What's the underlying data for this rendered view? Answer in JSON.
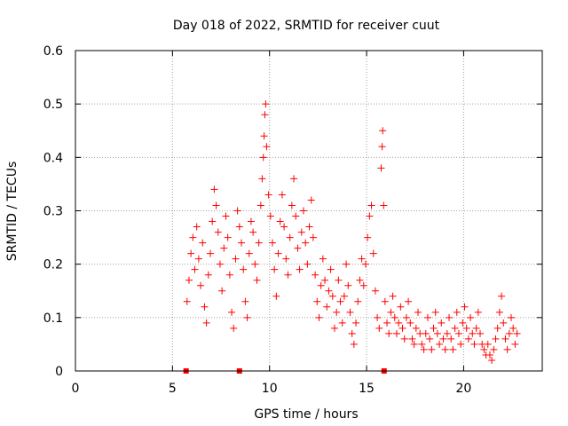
{
  "chart_data": {
    "type": "scatter",
    "title": "Day 018 of 2022, SRMTID for receiver cuut",
    "xlabel": "GPS time / hours",
    "ylabel": "SRMTID / TECUs",
    "xlim": [
      0,
      24.05
    ],
    "ylim": [
      0,
      0.6
    ],
    "xticks": [
      0,
      5,
      10,
      15,
      20
    ],
    "xtick_labels": [
      "0",
      "5",
      "10",
      "15",
      "20"
    ],
    "yticks": [
      0,
      0.1,
      0.2,
      0.3,
      0.4,
      0.5,
      0.6
    ],
    "ytick_labels": [
      "0",
      "0.1",
      "0.2",
      "0.3",
      "0.4",
      "0.5",
      "0.6"
    ],
    "grid": true,
    "marker": "+",
    "series_color": "#ff0000",
    "series": [
      {
        "name": "SRMTID",
        "points": [
          [
            5.75,
            0.13
          ],
          [
            5.85,
            0.17
          ],
          [
            5.95,
            0.22
          ],
          [
            6.05,
            0.25
          ],
          [
            6.15,
            0.19
          ],
          [
            6.25,
            0.27
          ],
          [
            6.35,
            0.21
          ],
          [
            6.45,
            0.16
          ],
          [
            6.55,
            0.24
          ],
          [
            6.65,
            0.12
          ],
          [
            6.75,
            0.09
          ],
          [
            6.85,
            0.18
          ],
          [
            6.95,
            0.22
          ],
          [
            7.05,
            0.28
          ],
          [
            7.15,
            0.34
          ],
          [
            7.25,
            0.31
          ],
          [
            7.35,
            0.26
          ],
          [
            7.45,
            0.2
          ],
          [
            7.55,
            0.15
          ],
          [
            7.65,
            0.23
          ],
          [
            7.75,
            0.29
          ],
          [
            7.85,
            0.25
          ],
          [
            7.95,
            0.18
          ],
          [
            8.05,
            0.11
          ],
          [
            8.15,
            0.08
          ],
          [
            8.25,
            0.21
          ],
          [
            8.35,
            0.3
          ],
          [
            8.45,
            0.27
          ],
          [
            8.55,
            0.24
          ],
          [
            8.65,
            0.19
          ],
          [
            8.75,
            0.13
          ],
          [
            8.85,
            0.1
          ],
          [
            8.95,
            0.22
          ],
          [
            9.05,
            0.28
          ],
          [
            9.15,
            0.26
          ],
          [
            9.25,
            0.2
          ],
          [
            9.35,
            0.17
          ],
          [
            9.45,
            0.24
          ],
          [
            9.55,
            0.31
          ],
          [
            9.62,
            0.36
          ],
          [
            9.68,
            0.4
          ],
          [
            9.72,
            0.44
          ],
          [
            9.76,
            0.48
          ],
          [
            9.8,
            0.5
          ],
          [
            9.85,
            0.42
          ],
          [
            9.95,
            0.33
          ],
          [
            10.05,
            0.29
          ],
          [
            10.15,
            0.24
          ],
          [
            10.25,
            0.19
          ],
          [
            10.35,
            0.14
          ],
          [
            10.45,
            0.22
          ],
          [
            10.55,
            0.28
          ],
          [
            10.65,
            0.33
          ],
          [
            10.75,
            0.27
          ],
          [
            10.85,
            0.21
          ],
          [
            10.95,
            0.18
          ],
          [
            11.05,
            0.25
          ],
          [
            11.15,
            0.31
          ],
          [
            11.25,
            0.36
          ],
          [
            11.35,
            0.29
          ],
          [
            11.45,
            0.23
          ],
          [
            11.55,
            0.19
          ],
          [
            11.65,
            0.26
          ],
          [
            11.75,
            0.3
          ],
          [
            11.85,
            0.24
          ],
          [
            11.95,
            0.2
          ],
          [
            12.05,
            0.27
          ],
          [
            12.15,
            0.32
          ],
          [
            12.25,
            0.25
          ],
          [
            12.35,
            0.18
          ],
          [
            12.45,
            0.13
          ],
          [
            12.55,
            0.1
          ],
          [
            12.65,
            0.16
          ],
          [
            12.75,
            0.21
          ],
          [
            12.85,
            0.17
          ],
          [
            12.95,
            0.12
          ],
          [
            13.05,
            0.15
          ],
          [
            13.15,
            0.19
          ],
          [
            13.25,
            0.14
          ],
          [
            13.35,
            0.08
          ],
          [
            13.45,
            0.11
          ],
          [
            13.55,
            0.17
          ],
          [
            13.65,
            0.13
          ],
          [
            13.75,
            0.09
          ],
          [
            13.85,
            0.14
          ],
          [
            13.95,
            0.2
          ],
          [
            14.05,
            0.16
          ],
          [
            14.15,
            0.11
          ],
          [
            14.25,
            0.07
          ],
          [
            14.35,
            0.05
          ],
          [
            14.45,
            0.09
          ],
          [
            14.55,
            0.13
          ],
          [
            14.65,
            0.17
          ],
          [
            14.75,
            0.21
          ],
          [
            14.85,
            0.16
          ],
          [
            14.95,
            0.2
          ],
          [
            15.05,
            0.25
          ],
          [
            15.15,
            0.29
          ],
          [
            15.25,
            0.31
          ],
          [
            15.35,
            0.22
          ],
          [
            15.45,
            0.15
          ],
          [
            15.55,
            0.1
          ],
          [
            15.65,
            0.08
          ],
          [
            15.75,
            0.38
          ],
          [
            15.8,
            0.42
          ],
          [
            15.83,
            0.45
          ],
          [
            15.88,
            0.31
          ],
          [
            15.95,
            0.13
          ],
          [
            16.05,
            0.09
          ],
          [
            16.15,
            0.07
          ],
          [
            16.25,
            0.11
          ],
          [
            16.35,
            0.14
          ],
          [
            16.45,
            0.1
          ],
          [
            16.55,
            0.07
          ],
          [
            16.65,
            0.09
          ],
          [
            16.75,
            0.12
          ],
          [
            16.85,
            0.08
          ],
          [
            16.95,
            0.06
          ],
          [
            17.05,
            0.1
          ],
          [
            17.15,
            0.13
          ],
          [
            17.25,
            0.09
          ],
          [
            17.35,
            0.06
          ],
          [
            17.45,
            0.05
          ],
          [
            17.55,
            0.08
          ],
          [
            17.65,
            0.11
          ],
          [
            17.75,
            0.07
          ],
          [
            17.85,
            0.05
          ],
          [
            17.95,
            0.04
          ],
          [
            18.05,
            0.07
          ],
          [
            18.15,
            0.1
          ],
          [
            18.25,
            0.06
          ],
          [
            18.35,
            0.04
          ],
          [
            18.45,
            0.08
          ],
          [
            18.55,
            0.11
          ],
          [
            18.65,
            0.07
          ],
          [
            18.75,
            0.05
          ],
          [
            18.85,
            0.09
          ],
          [
            18.95,
            0.06
          ],
          [
            19.05,
            0.04
          ],
          [
            19.15,
            0.07
          ],
          [
            19.25,
            0.1
          ],
          [
            19.35,
            0.06
          ],
          [
            19.45,
            0.04
          ],
          [
            19.55,
            0.08
          ],
          [
            19.65,
            0.11
          ],
          [
            19.75,
            0.07
          ],
          [
            19.85,
            0.05
          ],
          [
            19.95,
            0.09
          ],
          [
            20.05,
            0.12
          ],
          [
            20.15,
            0.08
          ],
          [
            20.25,
            0.06
          ],
          [
            20.35,
            0.1
          ],
          [
            20.45,
            0.07
          ],
          [
            20.55,
            0.05
          ],
          [
            20.65,
            0.08
          ],
          [
            20.75,
            0.11
          ],
          [
            20.85,
            0.07
          ],
          [
            20.95,
            0.05
          ],
          [
            21.05,
            0.04
          ],
          [
            21.15,
            0.03
          ],
          [
            21.25,
            0.05
          ],
          [
            21.35,
            0.03
          ],
          [
            21.45,
            0.02
          ],
          [
            21.55,
            0.04
          ],
          [
            21.65,
            0.06
          ],
          [
            21.75,
            0.08
          ],
          [
            21.85,
            0.11
          ],
          [
            21.95,
            0.14
          ],
          [
            22.05,
            0.09
          ],
          [
            22.15,
            0.06
          ],
          [
            22.25,
            0.04
          ],
          [
            22.35,
            0.07
          ],
          [
            22.45,
            0.1
          ],
          [
            22.55,
            0.08
          ],
          [
            22.65,
            0.05
          ],
          [
            22.75,
            0.07
          ]
        ]
      },
      {
        "name": "markers",
        "points": [
          [
            5.7,
            0.0
          ],
          [
            8.45,
            0.0
          ],
          [
            15.9,
            0.0
          ]
        ]
      }
    ]
  }
}
